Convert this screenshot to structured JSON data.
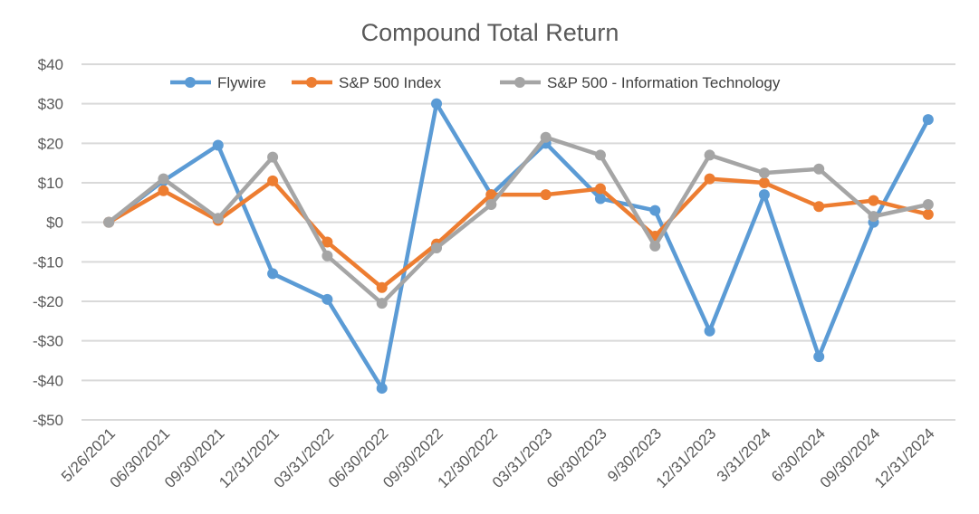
{
  "chart_data": {
    "type": "line",
    "title": "Compound Total Return",
    "xlabel": "",
    "ylabel": "",
    "ylim": [
      -50,
      40
    ],
    "yticks": [
      40,
      30,
      20,
      10,
      0,
      -10,
      -20,
      -30,
      -40,
      -50
    ],
    "ytick_labels": [
      "$40",
      "$30",
      "$20",
      "$10",
      "$0",
      "-$10",
      "-$20",
      "-$30",
      "-$40",
      "-$50"
    ],
    "grid": true,
    "legend_position": "top",
    "categories": [
      "5/26/2021",
      "06/30/2021",
      "09/30/2021",
      "12/31/2021",
      "03/31/2022",
      "06/30/2022",
      "09/30/2022",
      "12/30/2022",
      "03/31/2023",
      "06/30/2023",
      "9/30/2023",
      "12/31/2023",
      "3/31/2024",
      "6/30/2024",
      "09/30/2024",
      "12/31/2024"
    ],
    "series": [
      {
        "name": "Flywire",
        "color": "#5B9BD5",
        "values": [
          0,
          10.5,
          19.5,
          -13,
          -19.5,
          -42,
          30,
          7,
          20,
          6,
          3,
          -27.5,
          7,
          -34,
          0,
          26
        ]
      },
      {
        "name": "S&P 500 Index",
        "color": "#ED7D31",
        "values": [
          0,
          8,
          0.5,
          10.5,
          -5,
          -16.5,
          -5.5,
          7,
          7,
          8.5,
          -3.5,
          11,
          10,
          4,
          5.5,
          2
        ]
      },
      {
        "name": "S&P 500 - Information Technology",
        "color": "#A5A5A5",
        "values": [
          0,
          11,
          1,
          16.5,
          -8.5,
          -20.5,
          -6.5,
          4.5,
          21.5,
          17,
          -6,
          17,
          12.5,
          13.5,
          1.5,
          4.5
        ]
      }
    ]
  }
}
